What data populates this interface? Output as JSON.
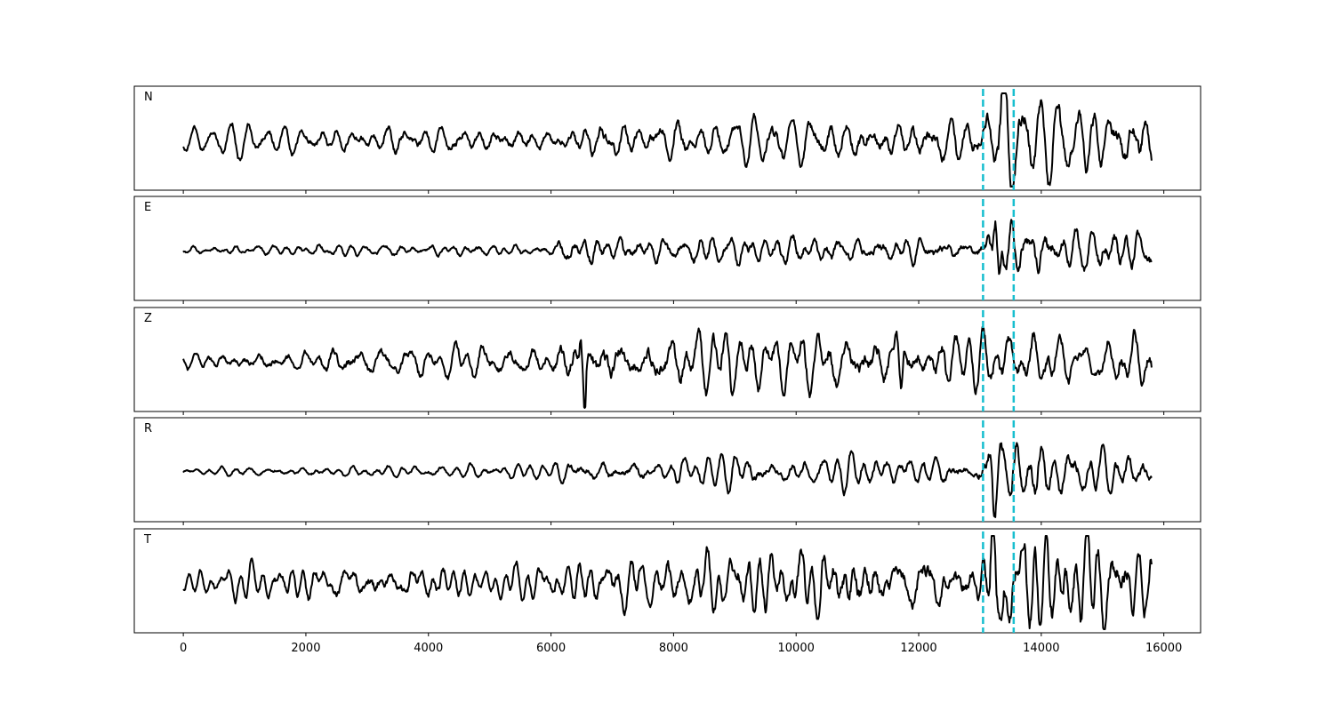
{
  "chart_data": {
    "type": "line",
    "title": "",
    "xlabel": "",
    "ylabel": "",
    "xlim": [
      -800,
      16600
    ],
    "x_ticks": [
      0,
      2000,
      4000,
      6000,
      8000,
      10000,
      12000,
      14000,
      16000
    ],
    "x_tick_labels": [
      "0",
      "2000",
      "4000",
      "6000",
      "8000",
      "10000",
      "12000",
      "14000",
      "16000"
    ],
    "x_range": [
      0,
      15800
    ],
    "markers": [
      13050,
      13550
    ],
    "marker_color": "#17becf",
    "trace_color": "#000000",
    "grid": false,
    "sharex": true,
    "panels": [
      {
        "label": "N",
        "envelope": [
          [
            0,
            0.12
          ],
          [
            700,
            0.25
          ],
          [
            2000,
            0.22
          ],
          [
            4000,
            0.25
          ],
          [
            6000,
            0.22
          ],
          [
            6500,
            0.3
          ],
          [
            7000,
            0.35
          ],
          [
            8000,
            0.35
          ],
          [
            10000,
            0.35
          ],
          [
            11000,
            0.38
          ],
          [
            12000,
            0.42
          ],
          [
            13000,
            0.42
          ],
          [
            13300,
            0.85
          ],
          [
            14000,
            0.6
          ],
          [
            15800,
            0.55
          ]
        ],
        "events": [
          {
            "x": 13270,
            "a": 0.95,
            "w": 45
          }
        ]
      },
      {
        "label": "E",
        "envelope": [
          [
            0,
            0.08
          ],
          [
            2000,
            0.12
          ],
          [
            6000,
            0.12
          ],
          [
            6200,
            0.28
          ],
          [
            8000,
            0.25
          ],
          [
            10000,
            0.3
          ],
          [
            12000,
            0.25
          ],
          [
            12900,
            0.2
          ],
          [
            13200,
            0.5
          ],
          [
            14000,
            0.45
          ],
          [
            15800,
            0.35
          ]
        ],
        "events": [
          {
            "x": 13250,
            "a": 0.95,
            "w": 40
          },
          {
            "x": 13320,
            "a": -0.85,
            "w": 40
          }
        ]
      },
      {
        "label": "Z",
        "envelope": [
          [
            0,
            0.15
          ],
          [
            3000,
            0.28
          ],
          [
            6000,
            0.3
          ],
          [
            6300,
            0.45
          ],
          [
            6500,
            0.55
          ],
          [
            7000,
            0.45
          ],
          [
            10000,
            0.45
          ],
          [
            11500,
            0.5
          ],
          [
            13000,
            0.45
          ],
          [
            15800,
            0.4
          ]
        ],
        "events": [
          {
            "x": 6490,
            "a": 0.7,
            "w": 35
          },
          {
            "x": 6550,
            "a": -0.95,
            "w": 30
          },
          {
            "x": 11640,
            "a": 0.55,
            "w": 30
          },
          {
            "x": 11720,
            "a": -0.6,
            "w": 30
          }
        ]
      },
      {
        "label": "R",
        "envelope": [
          [
            0,
            0.06
          ],
          [
            3000,
            0.1
          ],
          [
            6000,
            0.12
          ],
          [
            6200,
            0.2
          ],
          [
            8000,
            0.2
          ],
          [
            9000,
            0.28
          ],
          [
            12000,
            0.25
          ],
          [
            12900,
            0.2
          ],
          [
            13200,
            0.6
          ],
          [
            14000,
            0.45
          ],
          [
            15800,
            0.32
          ]
        ],
        "events": [
          {
            "x": 13230,
            "a": -0.8,
            "w": 40
          },
          {
            "x": 13320,
            "a": 0.95,
            "w": 40
          }
        ]
      },
      {
        "label": "T",
        "envelope": [
          [
            0,
            0.12
          ],
          [
            700,
            0.25
          ],
          [
            3000,
            0.3
          ],
          [
            6000,
            0.28
          ],
          [
            7000,
            0.4
          ],
          [
            9000,
            0.45
          ],
          [
            11000,
            0.55
          ],
          [
            12000,
            0.5
          ],
          [
            13000,
            0.45
          ],
          [
            13200,
            0.8
          ],
          [
            14000,
            0.75
          ],
          [
            15800,
            0.6
          ]
        ],
        "events": [
          {
            "x": 13200,
            "a": 0.95,
            "w": 40
          },
          {
            "x": 13270,
            "a": -0.9,
            "w": 40
          }
        ]
      }
    ]
  }
}
